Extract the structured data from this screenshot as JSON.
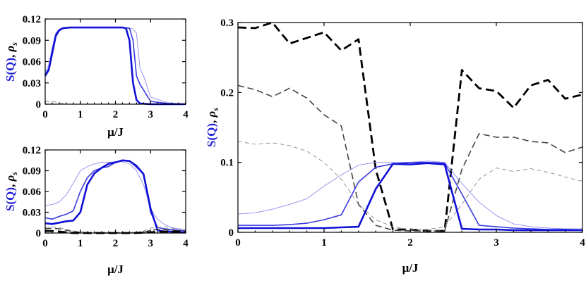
{
  "chart_data": [
    {
      "type": "line",
      "panel": "top-left",
      "xlabel": "μ/J",
      "ylabel": {
        "blue": "S(Q)",
        "sep": ", ",
        "black": "ρ",
        "sub": "s"
      },
      "xlim": [
        0,
        4
      ],
      "ylim": [
        0,
        0.12
      ],
      "xticks": [
        "0",
        "1",
        "2",
        "3",
        "4"
      ],
      "yticks": [
        "0",
        "0.03",
        "0.06",
        "0.09",
        "0.12"
      ],
      "series": [
        {
          "style": "blue-thin",
          "x": [
            0,
            0.1,
            0.2,
            0.3,
            0.4,
            0.5,
            0.7,
            1,
            1.5,
            2,
            2.3,
            2.5,
            2.6,
            2.7,
            2.8,
            2.9,
            3.0,
            3.5,
            4
          ],
          "y": [
            0.045,
            0.055,
            0.08,
            0.1,
            0.106,
            0.107,
            0.108,
            0.108,
            0.108,
            0.108,
            0.107,
            0.106,
            0.1,
            0.05,
            0.04,
            0.025,
            0.01,
            0.002,
            0.0
          ]
        },
        {
          "style": "blue-medium",
          "x": [
            0,
            0.1,
            0.2,
            0.3,
            0.4,
            0.5,
            0.7,
            1,
            1.5,
            2,
            2.2,
            2.4,
            2.5,
            2.6,
            2.7,
            2.8,
            2.9,
            3.0,
            3.5,
            4
          ],
          "y": [
            0.042,
            0.05,
            0.075,
            0.098,
            0.105,
            0.107,
            0.108,
            0.108,
            0.108,
            0.108,
            0.108,
            0.107,
            0.09,
            0.04,
            0.028,
            0.02,
            0.012,
            0.004,
            0.001,
            0.0
          ]
        },
        {
          "style": "blue-thick",
          "x": [
            0,
            0.1,
            0.2,
            0.3,
            0.4,
            0.5,
            0.7,
            1,
            1.5,
            2,
            2.2,
            2.3,
            2.4,
            2.5,
            2.6,
            2.7,
            3,
            4
          ],
          "y": [
            0.04,
            0.048,
            0.072,
            0.096,
            0.104,
            0.107,
            0.108,
            0.108,
            0.108,
            0.108,
            0.108,
            0.107,
            0.09,
            0.03,
            0.006,
            0.001,
            0.0,
            0.0
          ]
        },
        {
          "style": "gray-dash-thin",
          "x": [
            0,
            0.2,
            0.4,
            0.6,
            1,
            2,
            3,
            4
          ],
          "y": [
            0.004,
            0.004,
            0.002,
            0.0,
            0.0,
            0.0,
            0.0,
            0.0
          ]
        }
      ]
    },
    {
      "type": "line",
      "panel": "bottom-left",
      "xlabel": "μ/J",
      "ylabel": {
        "blue": "S(Q)",
        "sep": ", ",
        "black": "ρ",
        "sub": "s"
      },
      "xlim": [
        0,
        4
      ],
      "ylim": [
        0,
        0.12
      ],
      "xticks": [
        "0",
        "1",
        "2",
        "3",
        "4"
      ],
      "yticks": [
        "0",
        "0.03",
        "0.06",
        "0.09",
        "0.12"
      ],
      "series": [
        {
          "style": "blue-thin",
          "x": [
            0,
            0.2,
            0.4,
            0.6,
            0.8,
            1,
            1.2,
            1.4,
            1.6,
            1.8,
            2,
            2.2,
            2.4,
            2.6,
            2.8,
            3,
            3.2,
            3.4,
            3.6,
            3.8,
            4
          ],
          "y": [
            0.04,
            0.041,
            0.045,
            0.055,
            0.072,
            0.09,
            0.096,
            0.1,
            0.102,
            0.102,
            0.103,
            0.103,
            0.1,
            0.09,
            0.07,
            0.035,
            0.02,
            0.012,
            0.008,
            0.006,
            0.005
          ]
        },
        {
          "style": "blue-medium",
          "x": [
            0,
            0.2,
            0.4,
            0.6,
            0.8,
            1,
            1.2,
            1.4,
            1.6,
            1.8,
            2,
            2.2,
            2.4,
            2.6,
            2.8,
            3,
            3.2,
            3.4,
            3.6,
            3.8,
            4
          ],
          "y": [
            0.022,
            0.02,
            0.024,
            0.027,
            0.032,
            0.06,
            0.08,
            0.09,
            0.094,
            0.096,
            0.102,
            0.105,
            0.104,
            0.095,
            0.085,
            0.03,
            0.008,
            0.006,
            0.005,
            0.004,
            0.003
          ]
        },
        {
          "style": "blue-thick",
          "x": [
            0,
            0.2,
            0.4,
            0.6,
            0.8,
            1,
            1.2,
            1.4,
            1.6,
            1.8,
            2,
            2.2,
            2.4,
            2.6,
            2.8,
            3,
            3.2,
            3.4,
            3.6,
            3.8,
            4
          ],
          "y": [
            0.014,
            0.013,
            0.015,
            0.017,
            0.018,
            0.03,
            0.07,
            0.086,
            0.094,
            0.1,
            0.102,
            0.105,
            0.104,
            0.097,
            0.085,
            0.035,
            0.004,
            0.002,
            0.002,
            0.001,
            0.001
          ]
        },
        {
          "style": "gray-dash-thin",
          "x": [
            0,
            0.2,
            0.4,
            0.6,
            0.8,
            1,
            1.2,
            1.4,
            1.6,
            1.8,
            2,
            2.2,
            2.4,
            2.6,
            2.8,
            3,
            3.2,
            3.4,
            3.6,
            3.8,
            4
          ],
          "y": [
            0.008,
            0.009,
            0.008,
            0.005,
            0.003,
            0.002,
            0.001,
            0.001,
            0.001,
            0.001,
            0.001,
            0.001,
            0.001,
            0.001,
            0.003,
            0.007,
            0.008,
            0.009,
            0.007,
            0.006,
            0.005
          ]
        },
        {
          "style": "gray-dash-medium",
          "x": [
            0,
            0.2,
            0.4,
            0.6,
            0.8,
            1,
            1.2,
            1.4,
            1.6,
            1.8,
            2,
            2.2,
            2.4,
            2.6,
            2.8,
            3,
            3.2,
            3.4,
            3.6,
            3.8,
            4
          ],
          "y": [
            0.006,
            0.007,
            0.006,
            0.004,
            0.002,
            0.001,
            0.0,
            0.0,
            0.0,
            0.0,
            0.0,
            0.0,
            0.0,
            0.0,
            0.001,
            0.004,
            0.005,
            0.005,
            0.004,
            0.003,
            0.003
          ]
        },
        {
          "style": "black-dash-thick",
          "x": [
            0,
            0.2,
            0.4,
            0.6,
            0.8,
            1,
            1.5,
            2,
            2.5,
            3,
            3.2,
            3.6,
            4
          ],
          "y": [
            0.003,
            0.003,
            0.002,
            0.001,
            0.0,
            0.0,
            0.0,
            0.0,
            0.0,
            0.001,
            0.002,
            0.002,
            0.002
          ]
        }
      ]
    },
    {
      "type": "line",
      "panel": "right",
      "xlabel": "μ/J",
      "ylabel": {
        "blue": "S(Q)",
        "sep": ", ",
        "black": "ρ",
        "sub": "s"
      },
      "xlim": [
        0,
        4
      ],
      "ylim": [
        0,
        0.3
      ],
      "xticks": [
        "0",
        "1",
        "2",
        "3",
        "4"
      ],
      "yticks": [
        "0",
        "0.1",
        "0.2",
        "0.3"
      ],
      "series": [
        {
          "style": "black-dash-thick",
          "x": [
            0,
            0.2,
            0.4,
            0.6,
            0.8,
            1.0,
            1.2,
            1.4,
            1.6,
            1.8,
            2.0,
            2.2,
            2.4,
            2.6,
            2.8,
            3.0,
            3.2,
            3.4,
            3.6,
            3.8,
            4.0
          ],
          "y": [
            0.293,
            0.292,
            0.3,
            0.27,
            0.278,
            0.286,
            0.26,
            0.276,
            0.09,
            0.004,
            0.004,
            0.002,
            0.002,
            0.232,
            0.206,
            0.202,
            0.178,
            0.21,
            0.218,
            0.191,
            0.197
          ]
        },
        {
          "style": "gray-dash-medium",
          "x": [
            0,
            0.2,
            0.4,
            0.6,
            0.8,
            1.0,
            1.2,
            1.4,
            1.6,
            1.8,
            2.0,
            2.2,
            2.4,
            2.6,
            2.8,
            3.0,
            3.2,
            3.4,
            3.6,
            3.8,
            4.0
          ],
          "y": [
            0.21,
            0.204,
            0.194,
            0.206,
            0.192,
            0.168,
            0.152,
            0.04,
            0.01,
            0.003,
            0.002,
            0.002,
            0.002,
            0.09,
            0.141,
            0.136,
            0.136,
            0.13,
            0.128,
            0.114,
            0.122
          ]
        },
        {
          "style": "gray-dash-thin",
          "x": [
            0,
            0.2,
            0.4,
            0.6,
            0.8,
            1.0,
            1.2,
            1.4,
            1.6,
            1.8,
            2.0,
            2.2,
            2.4,
            2.6,
            2.8,
            3.0,
            3.2,
            3.4,
            3.6,
            3.8,
            4.0
          ],
          "y": [
            0.13,
            0.126,
            0.128,
            0.124,
            0.116,
            0.1,
            0.076,
            0.04,
            0.018,
            0.008,
            0.004,
            0.004,
            0.008,
            0.04,
            0.076,
            0.092,
            0.087,
            0.091,
            0.086,
            0.079,
            0.073
          ]
        },
        {
          "style": "blue-thin",
          "x": [
            0,
            0.2,
            0.4,
            0.6,
            0.8,
            1.0,
            1.2,
            1.4,
            1.6,
            1.8,
            2.0,
            2.2,
            2.4,
            2.6,
            2.8,
            3.0,
            3.2,
            3.4,
            3.6,
            3.8,
            4.0
          ],
          "y": [
            0.026,
            0.028,
            0.033,
            0.04,
            0.048,
            0.066,
            0.082,
            0.096,
            0.1,
            0.1,
            0.1,
            0.102,
            0.1,
            0.07,
            0.043,
            0.024,
            0.012,
            0.008,
            0.006,
            0.005,
            0.005
          ]
        },
        {
          "style": "blue-medium",
          "x": [
            0,
            0.2,
            0.4,
            0.6,
            0.8,
            1.0,
            1.2,
            1.4,
            1.6,
            1.8,
            2.0,
            2.2,
            2.4,
            2.6,
            2.8,
            3.0,
            3.2,
            3.4,
            3.6,
            3.8,
            4.0
          ],
          "y": [
            0.01,
            0.01,
            0.01,
            0.011,
            0.013,
            0.018,
            0.025,
            0.072,
            0.093,
            0.098,
            0.1,
            0.1,
            0.099,
            0.055,
            0.01,
            0.008,
            0.006,
            0.005,
            0.004,
            0.004,
            0.003
          ]
        },
        {
          "style": "blue-thick",
          "x": [
            0,
            0.2,
            0.4,
            0.6,
            0.8,
            1.0,
            1.2,
            1.4,
            1.6,
            1.8,
            2.0,
            2.2,
            2.4,
            2.6,
            2.8,
            3.0,
            3.2,
            3.4,
            3.6,
            3.8,
            4.0
          ],
          "y": [
            0.006,
            0.006,
            0.006,
            0.006,
            0.006,
            0.006,
            0.007,
            0.008,
            0.062,
            0.098,
            0.097,
            0.099,
            0.097,
            0.005,
            0.004,
            0.004,
            0.003,
            0.003,
            0.003,
            0.003,
            0.003
          ]
        }
      ]
    }
  ],
  "styles": {
    "blue-thin": {
      "color": "#8c8cf0",
      "dash": ""
    },
    "blue-medium": {
      "color": "#3a3ae0",
      "dash": ""
    },
    "blue-thick": {
      "color": "#1010d8",
      "dash": ""
    },
    "gray-dash-thin": {
      "color": "#8a8a8a",
      "dash": "6,4"
    },
    "gray-dash-medium": {
      "color": "#444444",
      "dash": "9,5"
    },
    "black-dash-thick": {
      "color": "#000000",
      "dash": "12,6"
    }
  }
}
